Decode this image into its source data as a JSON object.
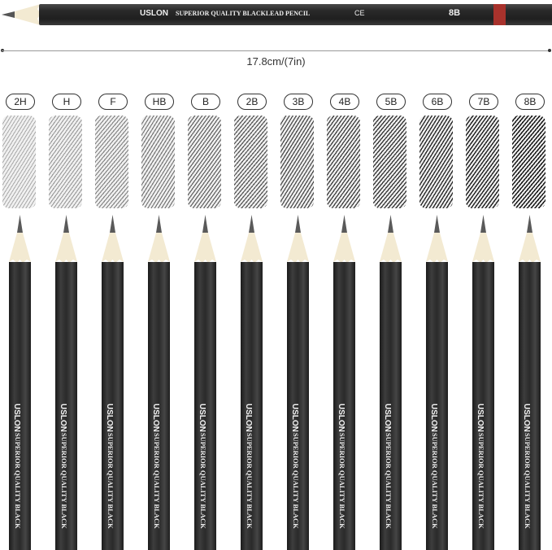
{
  "top_pencil": {
    "brand": "USLON",
    "slogan": "SUPERIOR QUALITY BLACKLEAD PENCIL",
    "mark": "CE",
    "grade": "8B",
    "band_color": "#a8322c"
  },
  "dimension": "17.8cm/(7in)",
  "pencils": [
    {
      "grade": "2H",
      "darkness": 0.35
    },
    {
      "grade": "H",
      "darkness": 0.42
    },
    {
      "grade": "F",
      "darkness": 0.5
    },
    {
      "grade": "HB",
      "darkness": 0.55
    },
    {
      "grade": "B",
      "darkness": 0.62
    },
    {
      "grade": "2B",
      "darkness": 0.66
    },
    {
      "grade": "3B",
      "darkness": 0.7
    },
    {
      "grade": "4B",
      "darkness": 0.74
    },
    {
      "grade": "5B",
      "darkness": 0.78
    },
    {
      "grade": "6B",
      "darkness": 0.82
    },
    {
      "grade": "7B",
      "darkness": 0.86
    },
    {
      "grade": "8B",
      "darkness": 0.9
    }
  ],
  "pencil_text": {
    "brand": "USLON",
    "slogan": "SUPERIOR QUALITY BLACK"
  }
}
